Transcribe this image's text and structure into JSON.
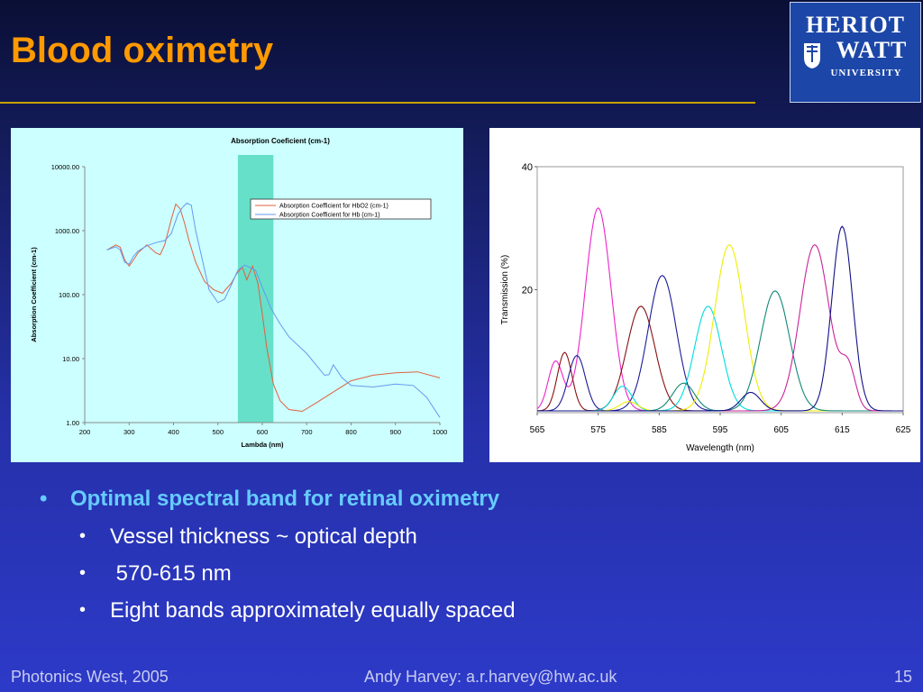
{
  "slide": {
    "title": "Blood oximetry",
    "logo": {
      "line1": "HERIOT",
      "line2": "WATT",
      "line3": "UNIVERSITY"
    },
    "bullets": {
      "main": "Optimal spectral band for retinal oximetry",
      "sub": [
        "Vessel thickness ~ optical depth",
        " 570-615 nm",
        "Eight bands approximately equally spaced"
      ]
    },
    "footer": {
      "left": "Photonics West, 2005",
      "center": "Andy Harvey: a.r.harvey@hw.ac.uk",
      "right": "15"
    },
    "colors": {
      "title": "#ff9900",
      "bullet_main": "#66ccff",
      "highlight_band": "#66e0c8"
    }
  },
  "chart_data": [
    {
      "type": "line",
      "title": "Absorption Coeficient (cm-1)",
      "xlabel": "Lambda (nm)",
      "ylabel": "Absorption Coefficient (cm-1)",
      "xlim": [
        200,
        1000
      ],
      "ylim": [
        1,
        10000
      ],
      "yscale": "log",
      "xticks": [
        200,
        300,
        400,
        500,
        600,
        700,
        800,
        900,
        1000
      ],
      "ytick_labels": [
        "1.00",
        "10.00",
        "100.00",
        "1000.00",
        "10000.00"
      ],
      "highlight_band": [
        545,
        625
      ],
      "legend_position": "top-right",
      "series": [
        {
          "name": "Absorption Coefficient for HbO2  (cm-1)",
          "color": "#e06040",
          "x": [
            250,
            270,
            280,
            290,
            300,
            310,
            320,
            340,
            360,
            370,
            380,
            395,
            405,
            415,
            425,
            435,
            450,
            470,
            490,
            510,
            530,
            542,
            555,
            565,
            578,
            590,
            600,
            610,
            625,
            640,
            660,
            690,
            720,
            760,
            800,
            850,
            900,
            950,
            1000
          ],
          "y": [
            500,
            600,
            550,
            350,
            280,
            350,
            450,
            600,
            450,
            420,
            600,
            1500,
            2600,
            2200,
            1300,
            700,
            320,
            160,
            120,
            105,
            150,
            210,
            270,
            170,
            280,
            150,
            50,
            15,
            4,
            2.2,
            1.6,
            1.5,
            2,
            3,
            4.5,
            5.5,
            6,
            6.2,
            5
          ]
        },
        {
          "name": "Absorption Coefficient for Hb  (cm-1)",
          "color": "#6699ee",
          "x": [
            250,
            270,
            280,
            290,
            300,
            310,
            320,
            340,
            360,
            380,
            395,
            410,
            420,
            430,
            440,
            450,
            465,
            480,
            500,
            515,
            530,
            545,
            560,
            570,
            585,
            600,
            620,
            640,
            660,
            700,
            740,
            750,
            760,
            780,
            800,
            850,
            900,
            940,
            970,
            1000
          ],
          "y": [
            500,
            560,
            500,
            320,
            300,
            400,
            480,
            580,
            650,
            700,
            900,
            1800,
            2300,
            2700,
            2500,
            1000,
            350,
            120,
            75,
            85,
            140,
            240,
            290,
            270,
            240,
            130,
            60,
            35,
            22,
            12,
            5.5,
            5.6,
            8,
            5,
            3.8,
            3.6,
            4,
            3.8,
            2.5,
            1.2
          ]
        }
      ]
    },
    {
      "type": "line",
      "title": "",
      "xlabel": "Wavelength (nm)",
      "ylabel": "Transmission (%)",
      "xlim": [
        565,
        625
      ],
      "ylim": [
        0,
        40
      ],
      "xticks": [
        565,
        575,
        585,
        595,
        605,
        615,
        625
      ],
      "yticks": [
        20,
        40
      ],
      "series": [
        {
          "color": "#ee22cc",
          "peaks": [
            {
              "center": 575,
              "height": 33,
              "sigma": 2.1
            },
            {
              "center": 568,
              "height": 8,
              "sigma": 1.2
            }
          ]
        },
        {
          "color": "#881111",
          "peaks": [
            {
              "center": 582,
              "height": 17,
              "sigma": 2.3
            },
            {
              "center": 569.5,
              "height": 9.5,
              "sigma": 1.2
            }
          ]
        },
        {
          "color": "#1c1c99",
          "peaks": [
            {
              "center": 585.5,
              "height": 22,
              "sigma": 2.3
            },
            {
              "center": 571.5,
              "height": 9,
              "sigma": 1.4
            }
          ]
        },
        {
          "color": "#00dddd",
          "peaks": [
            {
              "center": 593,
              "height": 17,
              "sigma": 2.2
            },
            {
              "center": 579,
              "height": 4,
              "sigma": 1.5
            }
          ]
        },
        {
          "color": "#eeee00",
          "peaks": [
            {
              "center": 596.5,
              "height": 27,
              "sigma": 2.4
            },
            {
              "center": 580,
              "height": 1.5,
              "sigma": 1.5
            }
          ]
        },
        {
          "color": "#118877",
          "peaks": [
            {
              "center": 604,
              "height": 19.5,
              "sigma": 2.4
            },
            {
              "center": 589,
              "height": 4.5,
              "sigma": 1.8
            }
          ]
        },
        {
          "color": "#cc2299",
          "peaks": [
            {
              "center": 610.5,
              "height": 27,
              "sigma": 2.4
            },
            {
              "center": 616,
              "height": 6.5,
              "sigma": 1.2
            }
          ]
        },
        {
          "color": "#111188",
          "peaks": [
            {
              "center": 615,
              "height": 30,
              "sigma": 1.7
            },
            {
              "center": 600,
              "height": 3,
              "sigma": 1.6
            }
          ]
        }
      ]
    }
  ]
}
